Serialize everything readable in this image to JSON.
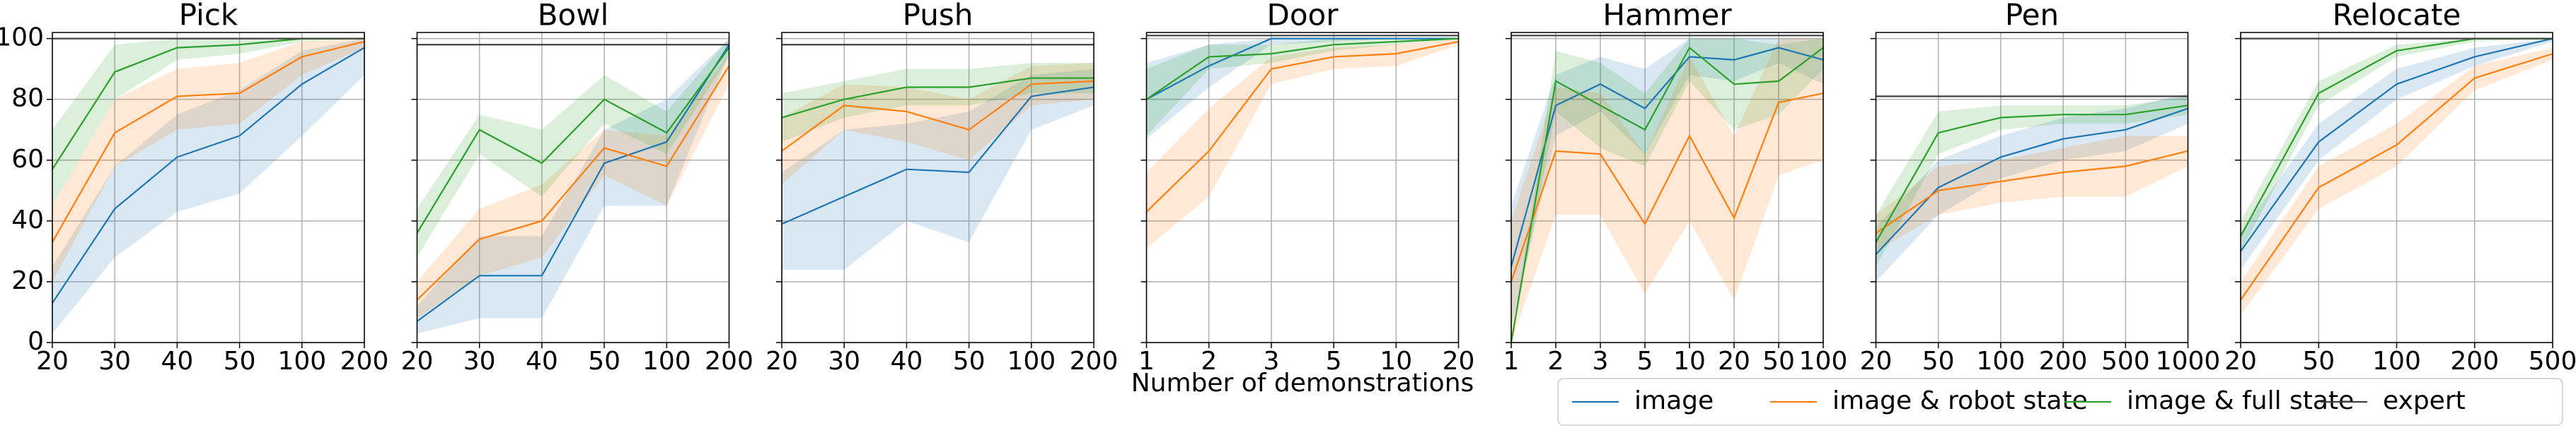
{
  "chart_data": [
    {
      "type": "line",
      "title": "Pick",
      "categories": [
        "20",
        "30",
        "40",
        "50",
        "100",
        "200"
      ],
      "ylim": [
        0,
        102
      ],
      "yticks": [
        0,
        20,
        40,
        60,
        80,
        100
      ],
      "ytick_labels": true,
      "grid": true,
      "series": [
        {
          "name": "image",
          "color": "#1f77b4",
          "values": [
            13,
            44,
            61,
            68,
            85,
            97
          ],
          "lower": [
            3,
            28,
            43,
            49,
            68,
            88
          ],
          "upper": [
            25,
            58,
            75,
            83,
            96,
            100
          ]
        },
        {
          "name": "image & robot state",
          "color": "#ff7f0e",
          "values": [
            33,
            69,
            81,
            82,
            94,
            99
          ],
          "lower": [
            20,
            58,
            70,
            72,
            88,
            97
          ],
          "upper": [
            45,
            80,
            90,
            92,
            99,
            100
          ]
        },
        {
          "name": "image & full state",
          "color": "#2ca02c",
          "values": [
            57,
            89,
            97,
            98,
            100,
            100
          ],
          "lower": [
            45,
            80,
            93,
            95,
            99,
            100
          ],
          "upper": [
            70,
            98,
            100,
            100,
            100,
            100
          ]
        },
        {
          "name": "expert",
          "color": "#404040",
          "values": [
            100,
            100,
            100,
            100,
            100,
            100
          ]
        }
      ]
    },
    {
      "type": "line",
      "title": "Bowl",
      "categories": [
        "20",
        "30",
        "40",
        "50",
        "100",
        "200"
      ],
      "ylim": [
        0,
        102
      ],
      "yticks": [
        0,
        20,
        40,
        60,
        80,
        100
      ],
      "ytick_labels": false,
      "grid": true,
      "series": [
        {
          "name": "image",
          "color": "#1f77b4",
          "values": [
            7,
            22,
            22,
            59,
            66,
            98
          ],
          "lower": [
            3,
            8,
            8,
            45,
            45,
            95
          ],
          "upper": [
            12,
            35,
            35,
            70,
            80,
            100
          ]
        },
        {
          "name": "image & robot state",
          "color": "#ff7f0e",
          "values": [
            14,
            34,
            40,
            64,
            58,
            91
          ],
          "lower": [
            8,
            22,
            28,
            55,
            45,
            85
          ],
          "upper": [
            20,
            44,
            52,
            70,
            68,
            95
          ]
        },
        {
          "name": "image & full state",
          "color": "#2ca02c",
          "values": [
            36,
            70,
            59,
            80,
            69,
            97
          ],
          "lower": [
            28,
            62,
            48,
            72,
            62,
            94
          ],
          "upper": [
            44,
            75,
            70,
            88,
            76,
            100
          ]
        },
        {
          "name": "expert",
          "color": "#404040",
          "values": [
            98,
            98,
            98,
            98,
            98,
            98
          ]
        }
      ]
    },
    {
      "type": "line",
      "title": "Push",
      "categories": [
        "20",
        "30",
        "40",
        "50",
        "100",
        "200"
      ],
      "ylim": [
        0,
        102
      ],
      "yticks": [
        0,
        20,
        40,
        60,
        80,
        100
      ],
      "ytick_labels": false,
      "grid": true,
      "series": [
        {
          "name": "image",
          "color": "#1f77b4",
          "values": [
            39,
            48,
            57,
            56,
            81,
            84
          ],
          "lower": [
            24,
            24,
            40,
            33,
            70,
            78
          ],
          "upper": [
            56,
            70,
            72,
            76,
            88,
            90
          ]
        },
        {
          "name": "image & robot state",
          "color": "#ff7f0e",
          "values": [
            63,
            78,
            76,
            70,
            85,
            86
          ],
          "lower": [
            52,
            70,
            66,
            60,
            78,
            80
          ],
          "upper": [
            74,
            85,
            84,
            80,
            91,
            92
          ]
        },
        {
          "name": "image & full state",
          "color": "#2ca02c",
          "values": [
            74,
            80,
            84,
            84,
            87,
            87
          ],
          "lower": [
            66,
            74,
            78,
            78,
            82,
            82
          ],
          "upper": [
            82,
            86,
            90,
            90,
            92,
            92
          ]
        },
        {
          "name": "expert",
          "color": "#404040",
          "values": [
            98,
            98,
            98,
            98,
            98,
            98
          ]
        }
      ]
    },
    {
      "type": "line",
      "title": "Door",
      "xlabel": "Number of demonstrations",
      "categories": [
        "1",
        "2",
        "3",
        "5",
        "10",
        "20"
      ],
      "ylim": [
        0,
        102
      ],
      "yticks": [
        0,
        20,
        40,
        60,
        80,
        100
      ],
      "ytick_labels": false,
      "grid": true,
      "series": [
        {
          "name": "image",
          "color": "#1f77b4",
          "values": [
            80,
            91,
            100,
            100,
            100,
            100
          ],
          "lower": [
            67,
            84,
            98,
            99,
            100,
            100
          ],
          "upper": [
            92,
            98,
            100,
            100,
            100,
            100
          ]
        },
        {
          "name": "image & robot state",
          "color": "#ff7f0e",
          "values": [
            43,
            63,
            90,
            94,
            95,
            99
          ],
          "lower": [
            31,
            48,
            85,
            90,
            91,
            98
          ],
          "upper": [
            56,
            77,
            94,
            97,
            98,
            100
          ]
        },
        {
          "name": "image & full state",
          "color": "#2ca02c",
          "values": [
            80,
            94,
            95,
            98,
            99,
            100
          ],
          "lower": [
            68,
            90,
            92,
            96,
            98,
            100
          ],
          "upper": [
            90,
            98,
            98,
            100,
            100,
            100
          ]
        },
        {
          "name": "expert",
          "color": "#404040",
          "values": [
            101,
            101,
            101,
            101,
            101,
            101
          ]
        }
      ]
    },
    {
      "type": "line",
      "title": "Hammer",
      "categories": [
        "1",
        "2",
        "3",
        "5",
        "10",
        "20",
        "50",
        "100"
      ],
      "ylim": [
        0,
        102
      ],
      "yticks": [
        0,
        20,
        40,
        60,
        80,
        100
      ],
      "ytick_labels": false,
      "grid": true,
      "series": [
        {
          "name": "image",
          "color": "#1f77b4",
          "values": [
            25,
            78,
            85,
            77,
            94,
            93,
            97,
            93
          ],
          "lower": [
            5,
            68,
            76,
            62,
            88,
            86,
            92,
            85
          ],
          "upper": [
            45,
            88,
            94,
            90,
            100,
            100,
            100,
            100
          ]
        },
        {
          "name": "image & robot state",
          "color": "#ff7f0e",
          "values": [
            20,
            63,
            62,
            39,
            68,
            41,
            79,
            82
          ],
          "lower": [
            0,
            42,
            42,
            16,
            40,
            14,
            55,
            60
          ],
          "upper": [
            40,
            84,
            82,
            62,
            94,
            68,
            100,
            100
          ]
        },
        {
          "name": "image & full state",
          "color": "#2ca02c",
          "values": [
            0,
            86,
            78,
            70,
            97,
            85,
            86,
            97
          ],
          "lower": [
            0,
            76,
            64,
            58,
            86,
            70,
            75,
            90
          ],
          "upper": [
            0,
            96,
            92,
            82,
            100,
            100,
            98,
            100
          ]
        },
        {
          "name": "expert",
          "color": "#404040",
          "values": [
            101,
            101,
            101,
            101,
            101,
            101,
            101,
            101
          ]
        }
      ]
    },
    {
      "type": "line",
      "title": "Pen",
      "categories": [
        "20",
        "50",
        "100",
        "200",
        "500",
        "1000"
      ],
      "ylim": [
        0,
        102
      ],
      "yticks": [
        0,
        20,
        40,
        60,
        80,
        100
      ],
      "ytick_labels": false,
      "grid": true,
      "series": [
        {
          "name": "image",
          "color": "#1f77b4",
          "values": [
            29,
            51,
            61,
            67,
            70,
            77
          ],
          "lower": [
            20,
            42,
            54,
            60,
            63,
            72
          ],
          "upper": [
            38,
            60,
            68,
            74,
            77,
            82
          ]
        },
        {
          "name": "image & robot state",
          "color": "#ff7f0e",
          "values": [
            36,
            50,
            53,
            56,
            58,
            63
          ],
          "lower": [
            30,
            42,
            46,
            48,
            48,
            58
          ],
          "upper": [
            42,
            58,
            60,
            64,
            68,
            68
          ]
        },
        {
          "name": "image & full state",
          "color": "#2ca02c",
          "values": [
            33,
            69,
            74,
            75,
            75,
            78
          ],
          "lower": [
            25,
            62,
            70,
            72,
            72,
            75
          ],
          "upper": [
            42,
            76,
            78,
            78,
            78,
            81
          ]
        },
        {
          "name": "expert",
          "color": "#404040",
          "values": [
            81,
            81,
            81,
            81,
            81,
            81
          ]
        }
      ]
    },
    {
      "type": "line",
      "title": "Relocate",
      "categories": [
        "20",
        "50",
        "100",
        "200",
        "500"
      ],
      "ylim": [
        0,
        102
      ],
      "yticks": [
        0,
        20,
        40,
        60,
        80,
        100
      ],
      "ytick_labels": false,
      "grid": true,
      "series": [
        {
          "name": "image",
          "color": "#1f77b4",
          "values": [
            30,
            66,
            85,
            94,
            100
          ],
          "lower": [
            24,
            60,
            80,
            91,
            99
          ],
          "upper": [
            36,
            72,
            90,
            97,
            100
          ]
        },
        {
          "name": "image & robot state",
          "color": "#ff7f0e",
          "values": [
            14,
            51,
            65,
            87,
            95
          ],
          "lower": [
            9,
            44,
            58,
            83,
            93
          ],
          "upper": [
            20,
            58,
            72,
            91,
            97
          ]
        },
        {
          "name": "image & full state",
          "color": "#2ca02c",
          "values": [
            35,
            82,
            96,
            100,
            100
          ],
          "lower": [
            30,
            78,
            94,
            99,
            100
          ],
          "upper": [
            40,
            86,
            98,
            100,
            100
          ]
        },
        {
          "name": "expert",
          "color": "#404040",
          "values": [
            100,
            100,
            100,
            100,
            100
          ]
        }
      ]
    }
  ]
}
